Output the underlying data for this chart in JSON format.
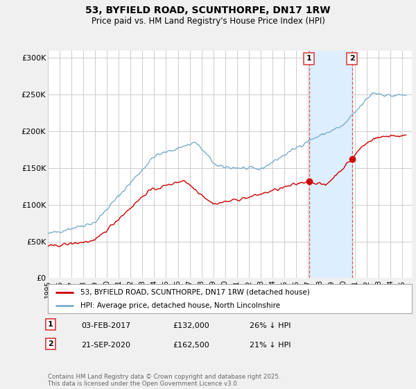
{
  "title": "53, BYFIELD ROAD, SCUNTHORPE, DN17 1RW",
  "subtitle": "Price paid vs. HM Land Registry's House Price Index (HPI)",
  "ylabel_ticks": [
    "£0",
    "£50K",
    "£100K",
    "£150K",
    "£200K",
    "£250K",
    "£300K"
  ],
  "ytick_values": [
    0,
    50000,
    100000,
    150000,
    200000,
    250000,
    300000
  ],
  "ylim": [
    0,
    310000
  ],
  "xlim_start": 1995.0,
  "xlim_end": 2025.8,
  "legend_line1": "53, BYFIELD ROAD, SCUNTHORPE, DN17 1RW (detached house)",
  "legend_line2": "HPI: Average price, detached house, North Lincolnshire",
  "marker1_year": 2017.09,
  "marker1_value": 132000,
  "marker1_label": "1",
  "marker2_year": 2020.73,
  "marker2_value": 162500,
  "marker2_label": "2",
  "table_row1": [
    "1",
    "03-FEB-2017",
    "£132,000",
    "26% ↓ HPI"
  ],
  "table_row2": [
    "2",
    "21-SEP-2020",
    "£162,500",
    "21% ↓ HPI"
  ],
  "footnote": "Contains HM Land Registry data © Crown copyright and database right 2025.\nThis data is licensed under the Open Government Licence v3.0.",
  "red_color": "#cc0000",
  "blue_color": "#7aadcc",
  "bg_color": "#f0f0f0",
  "plot_bg": "#ffffff",
  "grid_color": "#cccccc",
  "dashed_color": "#dd4444",
  "shade_color": "#ddeeff"
}
